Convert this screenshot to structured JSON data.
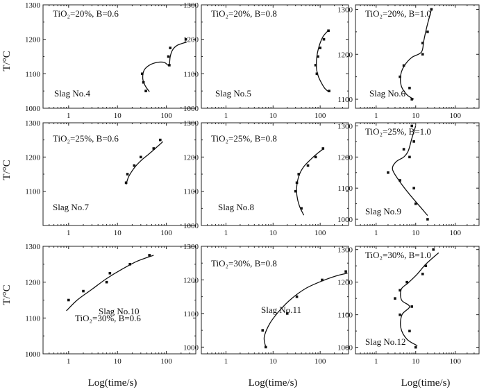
{
  "figure": {
    "ylabel": "T/°C",
    "xlabel": "Log(time/s)"
  },
  "chart_data": [
    {
      "type": "scatter",
      "slag": "Slag No.4",
      "condition": "TiO₂=20%, B=0.6",
      "xlabel": "",
      "ylabel": "T/°C",
      "xscale": "log",
      "xlim": [
        0.3,
        400
      ],
      "ylim": [
        1000,
        1300
      ],
      "xticks": [
        "1",
        "10",
        "100"
      ],
      "yticks": [
        "1000",
        "1100",
        "1200",
        "1300"
      ],
      "points": [
        [
          32,
          1100
        ],
        [
          34,
          1075
        ],
        [
          38,
          1050
        ],
        [
          110,
          1150
        ],
        [
          115,
          1125
        ],
        [
          120,
          1175
        ],
        [
          250,
          1200
        ]
      ],
      "fit": [
        [
          45,
          1048
        ],
        [
          37,
          1065
        ],
        [
          33,
          1085
        ],
        [
          35,
          1110
        ],
        [
          45,
          1125
        ],
        [
          65,
          1133
        ],
        [
          90,
          1133
        ],
        [
          108,
          1125
        ],
        [
          115,
          1125
        ],
        [
          120,
          1150
        ],
        [
          135,
          1170
        ],
        [
          170,
          1183
        ],
        [
          260,
          1192
        ]
      ]
    },
    {
      "type": "scatter",
      "slag": "Slag No.5",
      "condition": "TiO₂=20%, B=0.8",
      "xlabel": "",
      "ylabel": "",
      "xscale": "log",
      "xlim": [
        0.3,
        400
      ],
      "ylim": [
        1000,
        1300
      ],
      "xticks": [
        "1",
        "10",
        "100"
      ],
      "yticks": [
        "1000",
        "1100",
        "1200",
        "1300"
      ],
      "points": [
        [
          80,
          1125
        ],
        [
          85,
          1100
        ],
        [
          90,
          1150
        ],
        [
          100,
          1175
        ],
        [
          120,
          1200
        ],
        [
          150,
          1225
        ],
        [
          155,
          1050
        ]
      ],
      "fit": [
        [
          150,
          1226
        ],
        [
          115,
          1208
        ],
        [
          95,
          1180
        ],
        [
          85,
          1150
        ],
        [
          83,
          1120
        ],
        [
          90,
          1095
        ],
        [
          105,
          1075
        ],
        [
          125,
          1058
        ],
        [
          150,
          1048
        ]
      ]
    },
    {
      "type": "scatter",
      "slag": "Slag No.6",
      "condition": "TiO₂=20%, B=1.0",
      "xlabel": "",
      "ylabel": "",
      "xscale": "log",
      "xlim": [
        0.3,
        400
      ],
      "ylim": [
        1080,
        1310
      ],
      "xticks": [
        "1",
        "10",
        "100"
      ],
      "yticks": [
        "1100",
        "1200",
        "1300"
      ],
      "points": [
        [
          4,
          1150
        ],
        [
          5,
          1175
        ],
        [
          7,
          1125
        ],
        [
          8,
          1100
        ],
        [
          15,
          1200
        ],
        [
          15,
          1225
        ],
        [
          20,
          1250
        ],
        [
          25,
          1300
        ]
      ],
      "fit": [
        [
          9,
          1100
        ],
        [
          6,
          1110
        ],
        [
          4.3,
          1130
        ],
        [
          4.2,
          1155
        ],
        [
          5.2,
          1175
        ],
        [
          8,
          1193
        ],
        [
          14,
          1205
        ],
        [
          16,
          1230
        ],
        [
          19,
          1260
        ],
        [
          25,
          1300
        ]
      ]
    },
    {
      "type": "scatter",
      "slag": "Slag No.7",
      "condition": "TiO₂=25%, B=0.6",
      "xlabel": "",
      "ylabel": "T/°C",
      "xscale": "log",
      "xlim": [
        0.3,
        400
      ],
      "ylim": [
        1000,
        1300
      ],
      "xticks": [
        "1",
        "10",
        "100"
      ],
      "yticks": [
        "1100",
        "1200",
        "1300"
      ],
      "points": [
        [
          15,
          1125
        ],
        [
          16,
          1150
        ],
        [
          22,
          1175
        ],
        [
          30,
          1200
        ],
        [
          55,
          1225
        ],
        [
          75,
          1250
        ]
      ],
      "fit": [
        [
          15,
          1120
        ],
        [
          17,
          1143
        ],
        [
          22,
          1168
        ],
        [
          30,
          1189
        ],
        [
          45,
          1210
        ],
        [
          65,
          1230
        ],
        [
          85,
          1245
        ]
      ]
    },
    {
      "type": "scatter",
      "slag": "Slag No.8",
      "condition": "TiO₂=25%, B=0.8",
      "xlabel": "",
      "ylabel": "",
      "xscale": "log",
      "xlim": [
        0.3,
        400
      ],
      "ylim": [
        1000,
        1300
      ],
      "xticks": [
        "1",
        "10",
        "100"
      ],
      "yticks": [
        "1000",
        "1100",
        "1200",
        "1300"
      ],
      "points": [
        [
          30,
          1100
        ],
        [
          32,
          1125
        ],
        [
          35,
          1150
        ],
        [
          40,
          1050
        ],
        [
          55,
          1175
        ],
        [
          80,
          1200
        ],
        [
          115,
          1225
        ]
      ],
      "fit": [
        [
          45,
          1030
        ],
        [
          36,
          1058
        ],
        [
          32,
          1088
        ],
        [
          32,
          1118
        ],
        [
          36,
          1148
        ],
        [
          45,
          1172
        ],
        [
          65,
          1195
        ],
        [
          90,
          1212
        ],
        [
          120,
          1225
        ]
      ]
    },
    {
      "type": "scatter",
      "slag": "Slag No.9",
      "condition": "TiO₂=25%, B=1.0",
      "xlabel": "",
      "ylabel": "",
      "xscale": "log",
      "xlim": [
        0.3,
        400
      ],
      "ylim": [
        980,
        1310
      ],
      "xticks": [
        "1",
        "10",
        "100"
      ],
      "yticks": [
        "1000",
        "1100",
        "1200",
        "1300"
      ],
      "points": [
        [
          2,
          1150
        ],
        [
          4,
          1125
        ],
        [
          5,
          1225
        ],
        [
          7,
          1200
        ],
        [
          8,
          1300
        ],
        [
          9,
          1100
        ],
        [
          9,
          1250
        ],
        [
          10,
          1050
        ],
        [
          20,
          1000
        ]
      ],
      "fit": [
        [
          20,
          1012
        ],
        [
          13,
          1040
        ],
        [
          7,
          1080
        ],
        [
          4,
          1120
        ],
        [
          2.6,
          1160
        ],
        [
          3.2,
          1185
        ],
        [
          5,
          1200
        ],
        [
          6.5,
          1220
        ],
        [
          8,
          1260
        ],
        [
          10,
          1300
        ]
      ]
    },
    {
      "type": "scatter",
      "slag": "Slag No.10",
      "condition": "TiO₂=30%, B=0.6",
      "xlabel": "",
      "ylabel": "T/°C",
      "xscale": "log",
      "xlim": [
        0.3,
        400
      ],
      "ylim": [
        1000,
        1300
      ],
      "xticks": [
        "1",
        "10",
        "100"
      ],
      "yticks": [
        "1000",
        "1100",
        "1200",
        "1300"
      ],
      "points": [
        [
          1,
          1150
        ],
        [
          2,
          1175
        ],
        [
          6,
          1200
        ],
        [
          7,
          1225
        ],
        [
          18,
          1250
        ],
        [
          45,
          1275
        ]
      ],
      "fit": [
        [
          0.9,
          1120
        ],
        [
          1.5,
          1150
        ],
        [
          3,
          1180
        ],
        [
          6,
          1210
        ],
        [
          12,
          1235
        ],
        [
          25,
          1258
        ],
        [
          55,
          1275
        ]
      ]
    },
    {
      "type": "scatter",
      "slag": "Slag No.11",
      "condition": "TiO₂=30%, B=0.8",
      "xlabel": "",
      "ylabel": "",
      "xscale": "log",
      "xlim": [
        0.3,
        400
      ],
      "ylim": [
        980,
        1300
      ],
      "xticks": [
        "1",
        "10",
        "100"
      ],
      "yticks": [
        "1000",
        "1100",
        "1200",
        "1300"
      ],
      "points": [
        [
          6,
          1050
        ],
        [
          7,
          1000
        ],
        [
          20,
          1100
        ],
        [
          32,
          1150
        ],
        [
          110,
          1200
        ],
        [
          350,
          1225
        ]
      ],
      "fit": [
        [
          7,
          1000
        ],
        [
          6.5,
          1030
        ],
        [
          8.5,
          1070
        ],
        [
          14,
          1110
        ],
        [
          25,
          1145
        ],
        [
          50,
          1175
        ],
        [
          110,
          1197
        ],
        [
          220,
          1212
        ],
        [
          380,
          1220
        ]
      ]
    },
    {
      "type": "scatter",
      "slag": "Slag No.12",
      "condition": "TiO₂=30%, B=1.0",
      "xlabel": "",
      "ylabel": "",
      "xscale": "log",
      "xlim": [
        0.3,
        400
      ],
      "ylim": [
        980,
        1310
      ],
      "xticks": [
        "1",
        "10",
        "100"
      ],
      "yticks": [
        "1000",
        "1100",
        "1200",
        "1300"
      ],
      "points": [
        [
          3,
          1150
        ],
        [
          4,
          1100
        ],
        [
          4,
          1175
        ],
        [
          6,
          1200
        ],
        [
          7,
          1050
        ],
        [
          8,
          1125
        ],
        [
          10,
          1000
        ],
        [
          15,
          1225
        ],
        [
          18,
          1250
        ],
        [
          28,
          1300
        ]
      ],
      "fit": [
        [
          11,
          1005
        ],
        [
          6,
          1025
        ],
        [
          4.2,
          1060
        ],
        [
          4.5,
          1100
        ],
        [
          7,
          1125
        ],
        [
          4.4,
          1145
        ],
        [
          4.3,
          1178
        ],
        [
          6.5,
          1198
        ],
        [
          11,
          1225
        ],
        [
          18,
          1255
        ],
        [
          38,
          1290
        ]
      ]
    }
  ]
}
